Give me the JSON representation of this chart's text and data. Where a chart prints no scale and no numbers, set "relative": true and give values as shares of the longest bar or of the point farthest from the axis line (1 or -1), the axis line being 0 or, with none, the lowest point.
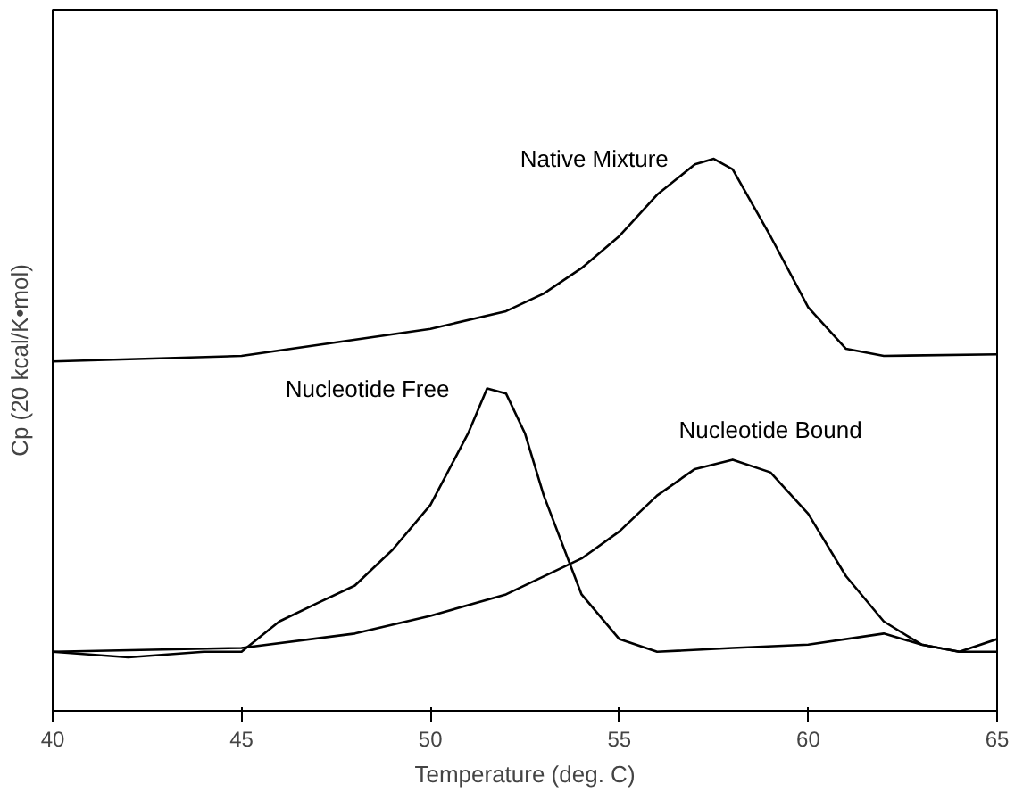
{
  "chart_data": {
    "type": "line",
    "relative": true,
    "xlabel": "Temperature (deg. C)",
    "ylabel": "Cp (20 kcal/K•mol)",
    "xlim": [
      40,
      65
    ],
    "xticks": [
      40,
      45,
      50,
      55,
      60,
      65
    ],
    "grid": false,
    "marker": "none",
    "line_style": "solid",
    "series": [
      {
        "name": "Native Mixture",
        "color": "#000000",
        "x": [
          40,
          45,
          50,
          52,
          53,
          54,
          55,
          56,
          57,
          57.5,
          58,
          59,
          60,
          61,
          62,
          65
        ],
        "values": [
          0.633,
          0.643,
          0.692,
          0.724,
          0.756,
          0.802,
          0.86,
          0.935,
          0.99,
          1.0,
          0.981,
          0.86,
          0.731,
          0.656,
          0.643,
          0.646
        ]
      },
      {
        "name": "Nucleotide Free",
        "color": "#000000",
        "x": [
          40,
          42,
          44,
          45,
          46,
          47,
          48,
          49,
          50,
          51,
          51.5,
          52,
          52.5,
          53,
          54,
          55,
          56,
          58,
          60,
          62,
          63,
          64,
          65
        ],
        "values": [
          0.107,
          0.097,
          0.107,
          0.107,
          0.162,
          0.195,
          0.227,
          0.292,
          0.373,
          0.503,
          0.584,
          0.575,
          0.503,
          0.39,
          0.211,
          0.13,
          0.107,
          0.114,
          0.12,
          0.14,
          0.12,
          0.107,
          0.13
        ]
      },
      {
        "name": "Nucleotide Bound",
        "color": "#000000",
        "x": [
          40,
          45,
          48,
          50,
          52,
          54,
          55,
          56,
          57,
          58,
          59,
          60,
          61,
          62,
          63,
          64,
          65
        ],
        "values": [
          0.107,
          0.114,
          0.14,
          0.172,
          0.211,
          0.276,
          0.325,
          0.39,
          0.438,
          0.455,
          0.432,
          0.357,
          0.244,
          0.162,
          0.12,
          0.107,
          0.107
        ]
      }
    ]
  }
}
